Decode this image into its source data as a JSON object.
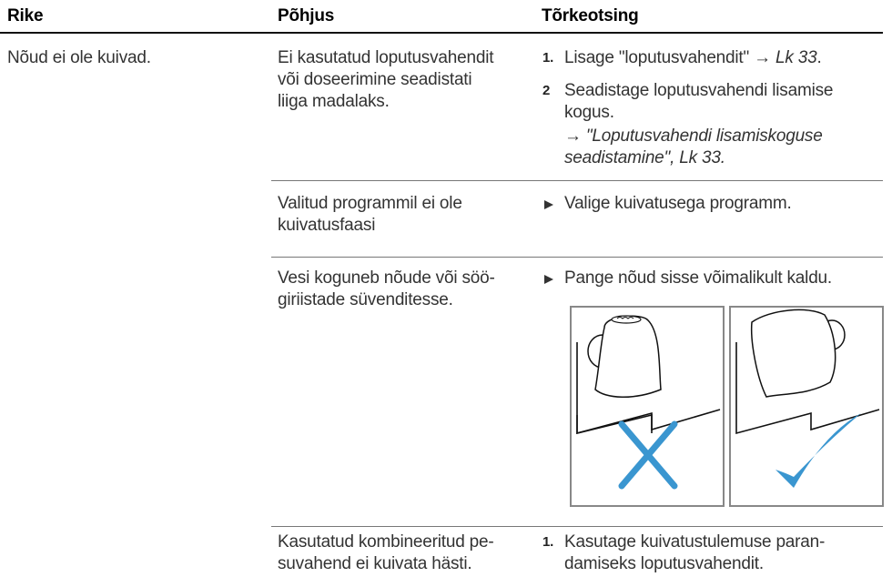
{
  "header": [
    "Rike",
    "Põhjus",
    "Tõrkeotsing"
  ],
  "fault": "Nõud ei ole kuivad.",
  "rows": [
    {
      "cause": [
        "Ei kasutatud loputusvahendit",
        "või doseerimine seadistati",
        "liiga madalaks."
      ],
      "steps": [
        {
          "num": "1.",
          "text": "Lisage \"loputusvahendit\" → ",
          "ref": "Lk 33",
          "end": "."
        },
        {
          "num": "2",
          "lines": [
            "Seadistage loputusvahendi lisamise",
            "kogus."
          ],
          "ref_lines": [
            "→ \"Loputusvahendi lisamiskoguse",
            "seadistamine\", Lk 33."
          ]
        }
      ]
    },
    {
      "cause": [
        "Valitud programmil ei ole",
        "kuivatusfaasi"
      ],
      "action": "Valige kuivatusega programm."
    },
    {
      "cause": [
        "Vesi koguneb nõude või söö-",
        "giriistade süvenditesse."
      ],
      "action": "Pange nõud sisse võimalikult kaldu."
    },
    {
      "cause": [
        "Kasutatud kombineeritud pe-",
        "suvahend ei kuivata hästi."
      ],
      "steps": [
        {
          "num": "1.",
          "lines": [
            "Kasutage kuivatustulemuse paran-",
            "damiseks loputusvahendit."
          ]
        }
      ]
    }
  ]
}
